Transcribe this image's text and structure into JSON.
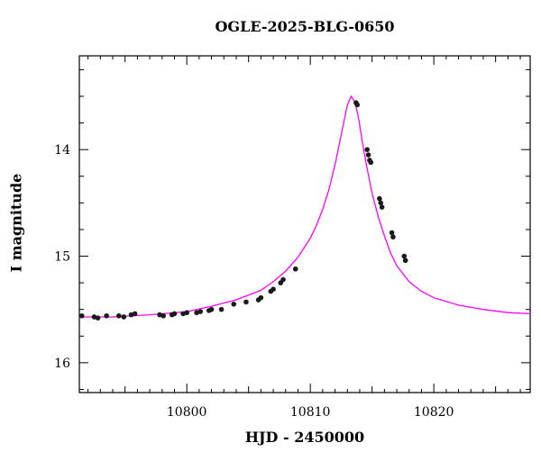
{
  "chart_data": {
    "type": "scatter",
    "title": "OGLE-2025-BLG-0650",
    "xlabel": "HJD - 2450000",
    "ylabel": "I magnitude",
    "xlim": [
      10791.3,
      10827.8
    ],
    "ylim": [
      16.28,
      13.12
    ],
    "y_inverted": true,
    "xticks": [
      10800,
      10810,
      10820
    ],
    "yticks": [
      14,
      15,
      16
    ],
    "grid": false,
    "model_color": "#ff00ff",
    "point_color": "#1a1a1a",
    "model_curve": {
      "x": [
        10791.3,
        10794,
        10797,
        10800,
        10802,
        10804,
        10806,
        10807,
        10808,
        10809,
        10810,
        10810.5,
        10811,
        10811.5,
        10812,
        10812.5,
        10813,
        10813.3,
        10813.6,
        10813.9,
        10814.2,
        10814.5,
        10815,
        10815.5,
        10816,
        10816.5,
        10817,
        10818,
        10819,
        10820,
        10822,
        10824,
        10826,
        10827.8
      ],
      "y": [
        15.57,
        15.57,
        15.55,
        15.52,
        15.47,
        15.41,
        15.32,
        15.24,
        15.14,
        15.01,
        14.83,
        14.71,
        14.56,
        14.38,
        14.14,
        13.86,
        13.58,
        13.5,
        13.55,
        13.7,
        13.92,
        14.12,
        14.41,
        14.63,
        14.81,
        14.97,
        15.09,
        15.24,
        15.33,
        15.39,
        15.46,
        15.5,
        15.53,
        15.54
      ]
    },
    "series": [
      {
        "x": [
          10791.5,
          10792.5,
          10792.8,
          10793.5,
          10794.5,
          10794.9,
          10795.5,
          10795.8,
          10797.8,
          10798.1,
          10798.8,
          10799.0,
          10799.7,
          10800.0,
          10800.8,
          10801.1,
          10801.8,
          10802.0,
          10802.8,
          10803.8,
          10804.8,
          10805.8,
          10806.0,
          10806.8,
          10807.0,
          10807.6,
          10807.8,
          10808.8,
          10813.7,
          10813.8,
          10814.6,
          10814.7,
          10814.8,
          10814.9,
          10815.6,
          10815.7,
          10815.8,
          10816.6,
          10816.7,
          10817.6,
          10817.7
        ],
        "y": [
          15.56,
          15.57,
          15.58,
          15.56,
          15.56,
          15.57,
          15.55,
          15.54,
          15.55,
          15.56,
          15.55,
          15.54,
          15.54,
          15.53,
          15.53,
          15.52,
          15.51,
          15.5,
          15.5,
          15.45,
          15.43,
          15.41,
          15.39,
          15.33,
          15.31,
          15.25,
          15.22,
          15.12,
          13.56,
          13.58,
          14.0,
          14.05,
          14.1,
          14.12,
          14.46,
          14.5,
          14.54,
          14.78,
          14.82,
          15.0,
          15.04
        ]
      }
    ]
  }
}
